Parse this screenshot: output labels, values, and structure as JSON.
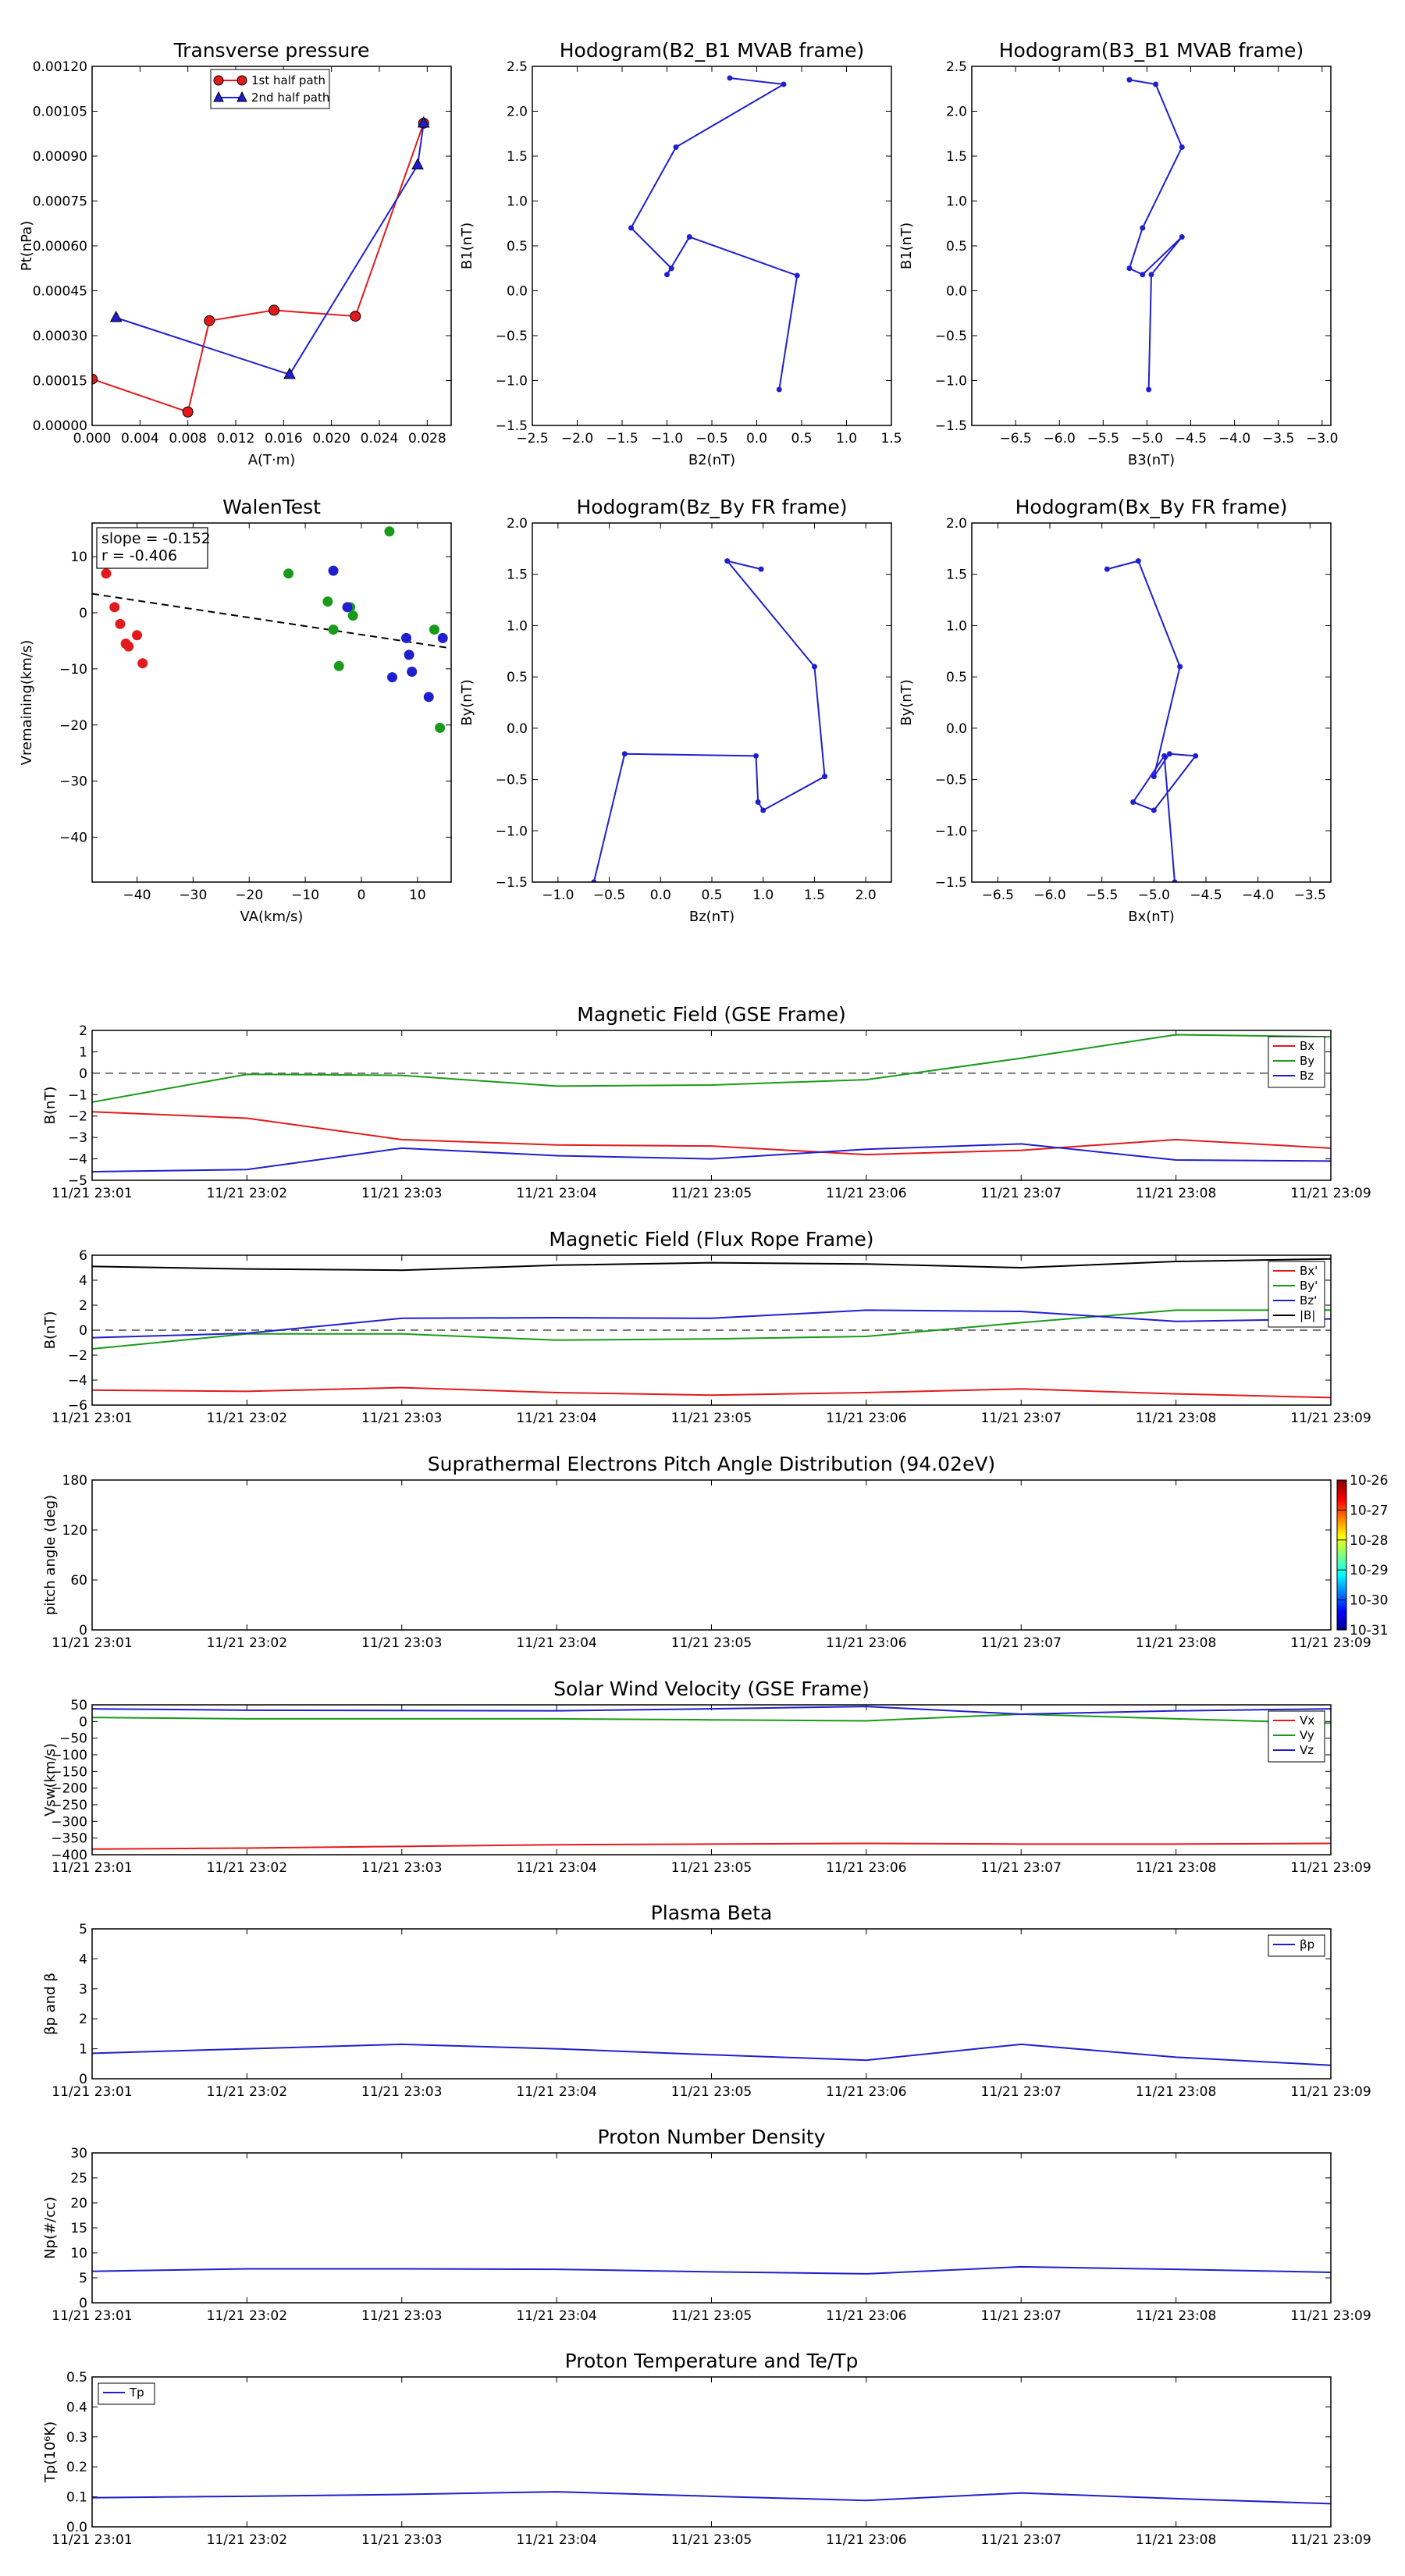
{
  "chart_data": [
    {
      "id": "p1",
      "type": "line",
      "title": "Transverse pressure",
      "xlabel": "A(T·m)",
      "ylabel": "Pt(nPa)",
      "xlim": [
        0,
        0.03
      ],
      "ylim": [
        0,
        0.0012
      ],
      "xticks": [
        0,
        0.004,
        0.008,
        0.012,
        0.016,
        0.02,
        0.024,
        0.028
      ],
      "yticks": [
        0,
        0.00015,
        0.0003,
        0.00045,
        0.0006,
        0.00075,
        0.0009,
        0.00105,
        0.0012
      ],
      "xtick_labels": [
        "0.000",
        "0.004",
        "0.008",
        "0.012",
        "0.016",
        "0.020",
        "0.024",
        "0.028"
      ],
      "ytick_labels": [
        "0.00000",
        "0.00015",
        "0.00030",
        "0.00045",
        "0.00060",
        "0.00075",
        "0.00090",
        "0.00105",
        "0.00120"
      ],
      "legend": "upper-center",
      "series": [
        {
          "name": "1st half path",
          "color": "#e31a1c",
          "marker": "circle",
          "x": [
            -0.002,
            0.0,
            0.008,
            0.0098,
            0.0152,
            0.022,
            0.0277
          ],
          "y": [
            0.00025,
            0.000155,
            4.5e-05,
            0.00035,
            0.000385,
            0.000365,
            0.00101
          ]
        },
        {
          "name": "2nd half path",
          "color": "#1f1fd0",
          "marker": "triangle",
          "x": [
            0.002,
            0.0165,
            0.0272,
            0.0277
          ],
          "y": [
            0.00036,
            0.00017,
            0.00087,
            0.00101
          ]
        }
      ]
    },
    {
      "id": "p2",
      "type": "line",
      "title": "Hodogram(B2_B1 MVAB frame)",
      "xlabel": "B2(nT)",
      "ylabel": "B1(nT)",
      "xlim": [
        -2.5,
        1.5
      ],
      "ylim": [
        -1.5,
        2.5
      ],
      "xticks": [
        -2.5,
        -2.0,
        -1.5,
        -1.0,
        -0.5,
        0.0,
        0.5,
        1.0,
        1.5
      ],
      "yticks": [
        -1.5,
        -1.0,
        -0.5,
        0.0,
        0.5,
        1.0,
        1.5,
        2.0,
        2.5
      ],
      "xtick_labels": [
        "−2.5",
        "−2.0",
        "−1.5",
        "−1.0",
        "−0.5",
        "0.0",
        "0.5",
        "1.0",
        "1.5"
      ],
      "ytick_labels": [
        "−1.5",
        "−1.0",
        "−0.5",
        "0.0",
        "0.5",
        "1.0",
        "1.5",
        "2.0",
        "2.5"
      ],
      "series": [
        {
          "color": "#1f1fd0",
          "x": [
            -0.3,
            0.3,
            -0.9,
            -1.4,
            -0.95,
            -1.0,
            -0.75,
            0.45,
            0.25
          ],
          "y": [
            2.37,
            2.3,
            1.6,
            0.7,
            0.25,
            0.18,
            0.6,
            0.17,
            -1.1
          ]
        }
      ]
    },
    {
      "id": "p3",
      "type": "line",
      "title": "Hodogram(B3_B1 MVAB frame)",
      "xlabel": "B3(nT)",
      "ylabel": "B1(nT)",
      "xlim": [
        -7.0,
        -2.9
      ],
      "ylim": [
        -1.5,
        2.5
      ],
      "xticks": [
        -6.5,
        -6.0,
        -5.5,
        -5.0,
        -4.5,
        -4.0,
        -3.5,
        -3.0
      ],
      "yticks": [
        -1.5,
        -1.0,
        -0.5,
        0.0,
        0.5,
        1.0,
        1.5,
        2.0,
        2.5
      ],
      "xtick_labels": [
        "−6.5",
        "−6.0",
        "−5.5",
        "−5.0",
        "−4.5",
        "−4.0",
        "−3.5",
        "−3.0"
      ],
      "ytick_labels": [
        "−1.5",
        "−1.0",
        "−0.5",
        "0.0",
        "0.5",
        "1.0",
        "1.5",
        "2.0",
        "2.5"
      ],
      "series": [
        {
          "color": "#1f1fd0",
          "x": [
            -5.2,
            -4.9,
            -4.6,
            -5.05,
            -5.2,
            -5.05,
            -4.6,
            -4.95,
            -4.98
          ],
          "y": [
            2.35,
            2.3,
            1.6,
            0.7,
            0.25,
            0.18,
            0.6,
            0.18,
            -1.1
          ]
        }
      ]
    },
    {
      "id": "p4",
      "type": "scatter",
      "title": "WalenTest",
      "xlabel": "VA(km/s)",
      "ylabel": "Vremaining(km/s)",
      "xlim": [
        -48,
        16
      ],
      "ylim": [
        -48,
        16
      ],
      "xticks": [
        -40,
        -30,
        -20,
        -10,
        0,
        10
      ],
      "yticks": [
        -40,
        -30,
        -20,
        -10,
        0,
        10
      ],
      "xtick_labels": [
        "−40",
        "−30",
        "−20",
        "−10",
        "0",
        "10"
      ],
      "ytick_labels": [
        "−40",
        "−30",
        "−20",
        "−10",
        "0",
        "10"
      ],
      "annotation": [
        "slope = -0.152",
        "r = -0.406"
      ],
      "fit_line": {
        "slope": -0.152,
        "intercept": -3.9,
        "color": "#000000"
      },
      "groups": [
        {
          "color": "#e31a1c",
          "x": [
            -47,
            -45.5,
            -44,
            -43,
            -42,
            -41.5,
            -40,
            -39
          ],
          "y": [
            17,
            7,
            1,
            -2,
            -5.5,
            -6,
            -4,
            -9
          ]
        },
        {
          "color": "#1a9a1a",
          "x": [
            -13,
            -6,
            -5,
            -4,
            -2,
            -1.5,
            5,
            13,
            14
          ],
          "y": [
            7,
            2,
            -3,
            -9.5,
            1,
            -0.5,
            14.5,
            -3,
            -20.5
          ]
        },
        {
          "color": "#1f1fd0",
          "x": [
            -5,
            -2.5,
            8,
            8.5,
            9,
            12,
            14.5,
            5.5
          ],
          "y": [
            7.5,
            1,
            -4.5,
            -7.5,
            -10.5,
            -15,
            -4.5,
            -11.5
          ]
        }
      ]
    },
    {
      "id": "p5",
      "type": "line",
      "title": "Hodogram(Bz_By FR frame)",
      "xlabel": "Bz(nT)",
      "ylabel": "By(nT)",
      "xlim": [
        -1.25,
        2.25
      ],
      "ylim": [
        -1.5,
        2.0
      ],
      "xticks": [
        -1.0,
        -0.5,
        0.0,
        0.5,
        1.0,
        1.5,
        2.0
      ],
      "yticks": [
        -1.5,
        -1.0,
        -0.5,
        0.0,
        0.5,
        1.0,
        1.5,
        2.0
      ],
      "xtick_labels": [
        "−1.0",
        "−0.5",
        "0.0",
        "0.5",
        "1.0",
        "1.5",
        "2.0"
      ],
      "ytick_labels": [
        "−1.5",
        "−1.0",
        "−0.5",
        "0.0",
        "0.5",
        "1.0",
        "1.5",
        "2.0"
      ],
      "series": [
        {
          "color": "#1f1fd0",
          "x": [
            0.98,
            0.65,
            1.5,
            1.6,
            1.0,
            0.95,
            0.93,
            -0.35,
            -0.65
          ],
          "y": [
            1.55,
            1.63,
            0.6,
            -0.47,
            -0.8,
            -0.72,
            -0.27,
            -0.25,
            -1.5
          ]
        }
      ]
    },
    {
      "id": "p6",
      "type": "line",
      "title": "Hodogram(Bx_By FR frame)",
      "xlabel": "Bx(nT)",
      "ylabel": "By(nT)",
      "xlim": [
        -6.75,
        -3.3
      ],
      "ylim": [
        -1.5,
        2.0
      ],
      "xticks": [
        -6.5,
        -6.0,
        -5.5,
        -5.0,
        -4.5,
        -4.0,
        -3.5
      ],
      "yticks": [
        -1.5,
        -1.0,
        -0.5,
        0.0,
        0.5,
        1.0,
        1.5,
        2.0
      ],
      "xtick_labels": [
        "−6.5",
        "−6.0",
        "−5.5",
        "−5.0",
        "−4.5",
        "−4.0",
        "−3.5"
      ],
      "ytick_labels": [
        "−1.5",
        "−1.0",
        "−0.5",
        "0.0",
        "0.5",
        "1.0",
        "1.5",
        "2.0"
      ],
      "series": [
        {
          "color": "#1f1fd0",
          "x": [
            -5.45,
            -5.15,
            -4.75,
            -5.0,
            -4.85,
            -4.6,
            -5.0,
            -5.2,
            -4.9,
            -4.8
          ],
          "y": [
            1.55,
            1.63,
            0.6,
            -0.47,
            -0.25,
            -0.27,
            -0.8,
            -0.72,
            -0.27,
            -1.5
          ]
        }
      ]
    },
    {
      "id": "t1",
      "type": "line",
      "title": "Magnetic Field (GSE Frame)",
      "ylabel": "B(nT)",
      "ylim": [
        -5,
        2
      ],
      "yticks": [
        -5,
        -4,
        -3,
        -2,
        -1,
        0,
        1,
        2
      ],
      "ytick_labels": [
        "−5",
        "−4",
        "−3",
        "−2",
        "−1",
        "0",
        "1",
        "2"
      ],
      "categories": [
        "11/21 23:01",
        "11/21 23:02",
        "11/21 23:03",
        "11/21 23:04",
        "11/21 23:05",
        "11/21 23:06",
        "11/21 23:07",
        "11/21 23:08",
        "11/21 23:09"
      ],
      "zero_line": true,
      "legend": "upper-right",
      "series": [
        {
          "name": "Bx",
          "color": "#e31a1c",
          "values": [
            -1.8,
            -2.1,
            -3.1,
            -3.35,
            -3.4,
            -3.8,
            -3.6,
            -3.1,
            -3.5
          ]
        },
        {
          "name": "By",
          "color": "#1a9a1a",
          "values": [
            -1.35,
            -0.05,
            -0.1,
            -0.6,
            -0.55,
            -0.3,
            0.7,
            1.8,
            1.7
          ]
        },
        {
          "name": "Bz",
          "color": "#1f1fd0",
          "values": [
            -4.6,
            -4.5,
            -3.5,
            -3.85,
            -4.0,
            -3.55,
            -3.3,
            -4.05,
            -4.1
          ]
        }
      ]
    },
    {
      "id": "t2",
      "type": "line",
      "title": "Magnetic Field (Flux Rope Frame)",
      "ylabel": "B(nT)",
      "ylim": [
        -6,
        6
      ],
      "yticks": [
        -6,
        -4,
        -2,
        0,
        2,
        4,
        6
      ],
      "ytick_labels": [
        "−6",
        "−4",
        "−2",
        "0",
        "2",
        "4",
        "6"
      ],
      "categories": [
        "11/21 23:01",
        "11/21 23:02",
        "11/21 23:03",
        "11/21 23:04",
        "11/21 23:05",
        "11/21 23:06",
        "11/21 23:07",
        "11/21 23:08",
        "11/21 23:09"
      ],
      "zero_line": true,
      "legend": "upper-right",
      "series": [
        {
          "name": "Bx'",
          "color": "#e31a1c",
          "values": [
            -4.8,
            -4.9,
            -4.6,
            -5.0,
            -5.2,
            -5.0,
            -4.7,
            -5.1,
            -5.4
          ]
        },
        {
          "name": "By'",
          "color": "#1a9a1a",
          "values": [
            -1.5,
            -0.3,
            -0.3,
            -0.8,
            -0.7,
            -0.5,
            0.6,
            1.6,
            1.6
          ]
        },
        {
          "name": "Bz'",
          "color": "#1f1fd0",
          "values": [
            -0.6,
            -0.25,
            0.95,
            1.0,
            0.95,
            1.6,
            1.5,
            0.7,
            0.9
          ]
        },
        {
          "name": "|B|",
          "color": "#000000",
          "values": [
            5.1,
            4.9,
            4.8,
            5.2,
            5.4,
            5.3,
            5.0,
            5.5,
            5.7
          ]
        }
      ]
    },
    {
      "id": "t3",
      "type": "heatmap",
      "title": "Suprathermal Electrons Pitch Angle Distribution (94.02eV)",
      "ylabel": "pitch angle (deg)",
      "ylim": [
        0,
        180
      ],
      "yticks": [
        0,
        60,
        120,
        180
      ],
      "ytick_labels": [
        "0",
        "60",
        "120",
        "180"
      ],
      "categories": [
        "11/21 23:01",
        "11/21 23:02",
        "11/21 23:03",
        "11/21 23:04",
        "11/21 23:05",
        "11/21 23:06",
        "11/21 23:07",
        "11/21 23:08",
        "11/21 23:09"
      ],
      "colorbar": {
        "labels": [
          "10-26",
          "10-27",
          "10-28",
          "10-29",
          "10-30",
          "10-31"
        ]
      }
    },
    {
      "id": "t4",
      "type": "line",
      "title": "Solar Wind Velocity (GSE Frame)",
      "ylabel": "Vsw(km/s)",
      "ylim": [
        -400,
        50
      ],
      "yticks": [
        -400,
        -350,
        -300,
        -250,
        -200,
        -150,
        -100,
        -50,
        0,
        50
      ],
      "ytick_labels": [
        "−400",
        "−350",
        "−300",
        "−250",
        "−200",
        "−150",
        "−100",
        "−50",
        "0",
        "50"
      ],
      "categories": [
        "11/21 23:01",
        "11/21 23:02",
        "11/21 23:03",
        "11/21 23:04",
        "11/21 23:05",
        "11/21 23:06",
        "11/21 23:07",
        "11/21 23:08",
        "11/21 23:09"
      ],
      "legend": "upper-right",
      "series": [
        {
          "name": "Vx",
          "color": "#e31a1c",
          "values": [
            -383,
            -380,
            -375,
            -370,
            -368,
            -366,
            -368,
            -368,
            -366
          ]
        },
        {
          "name": "Vy",
          "color": "#1a9a1a",
          "values": [
            12,
            8,
            8,
            8,
            5,
            2,
            22,
            8,
            -5
          ]
        },
        {
          "name": "Vz",
          "color": "#1f1fd0",
          "values": [
            38,
            34,
            33,
            32,
            38,
            45,
            22,
            32,
            38
          ]
        }
      ]
    },
    {
      "id": "t5",
      "type": "line",
      "title": "Plasma Beta",
      "ylabel": "βp and β",
      "ylim": [
        0,
        5
      ],
      "yticks": [
        0,
        1,
        2,
        3,
        4,
        5
      ],
      "ytick_labels": [
        "0",
        "1",
        "2",
        "3",
        "4",
        "5"
      ],
      "categories": [
        "11/21 23:01",
        "11/21 23:02",
        "11/21 23:03",
        "11/21 23:04",
        "11/21 23:05",
        "11/21 23:06",
        "11/21 23:07",
        "11/21 23:08",
        "11/21 23:09"
      ],
      "legend": "upper-right",
      "series": [
        {
          "name": "βp",
          "color": "#1f1fd0",
          "values": [
            0.85,
            1.0,
            1.15,
            1.0,
            0.8,
            0.62,
            1.15,
            0.72,
            0.45
          ]
        }
      ]
    },
    {
      "id": "t6",
      "type": "line",
      "title": "Proton Number Density",
      "ylabel": "Np(#/cc)",
      "ylim": [
        0,
        30
      ],
      "yticks": [
        0,
        5,
        10,
        15,
        20,
        25,
        30
      ],
      "ytick_labels": [
        "0",
        "5",
        "10",
        "15",
        "20",
        "25",
        "30"
      ],
      "categories": [
        "11/21 23:01",
        "11/21 23:02",
        "11/21 23:03",
        "11/21 23:04",
        "11/21 23:05",
        "11/21 23:06",
        "11/21 23:07",
        "11/21 23:08",
        "11/21 23:09"
      ],
      "series": [
        {
          "color": "#1f1fd0",
          "values": [
            6.3,
            6.8,
            6.8,
            6.7,
            6.2,
            5.8,
            7.2,
            6.7,
            6.1
          ]
        }
      ]
    },
    {
      "id": "t7",
      "type": "line",
      "title": "Proton Temperature and Te/Tp",
      "ylabel": "Tp(10⁶K)",
      "ylim": [
        0,
        0.5
      ],
      "yticks": [
        0,
        0.1,
        0.2,
        0.3,
        0.4,
        0.5
      ],
      "ytick_labels": [
        "0.0",
        "0.1",
        "0.2",
        "0.3",
        "0.4",
        "0.5"
      ],
      "categories": [
        "11/21 23:01",
        "11/21 23:02",
        "11/21 23:03",
        "11/21 23:04",
        "11/21 23:05",
        "11/21 23:06",
        "11/21 23:07",
        "11/21 23:08",
        "11/21 23:09"
      ],
      "legend": "upper-left",
      "series": [
        {
          "name": "Tp",
          "color": "#1f1fd0",
          "values": [
            0.097,
            0.102,
            0.108,
            0.117,
            0.102,
            0.088,
            0.113,
            0.094,
            0.077
          ]
        }
      ]
    }
  ]
}
